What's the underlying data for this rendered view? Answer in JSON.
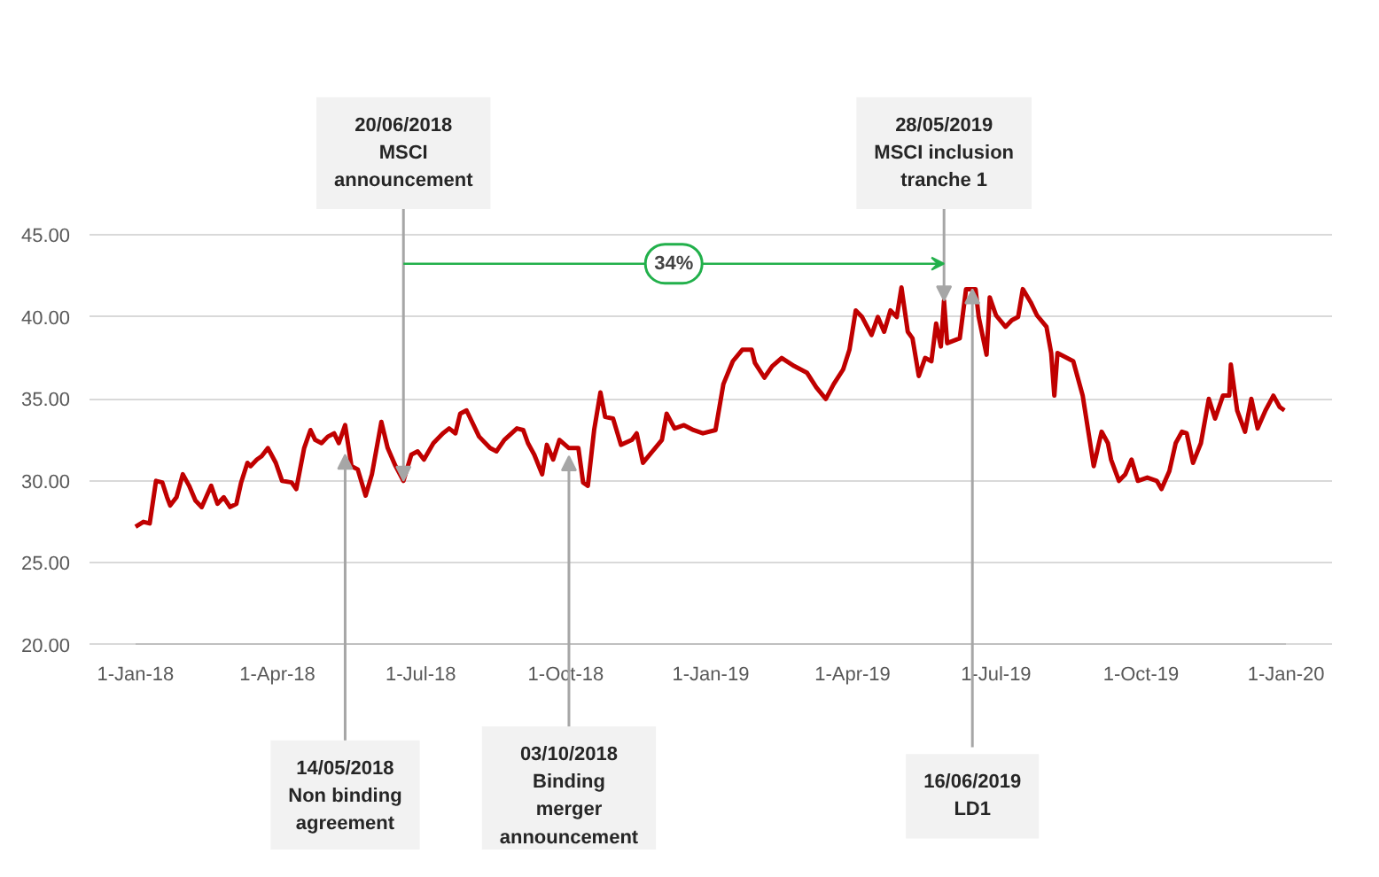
{
  "chart_data": {
    "type": "line",
    "xlim": [
      "2018-01-01",
      "2020-01-01"
    ],
    "ylim": [
      20,
      45
    ],
    "xticks": [
      {
        "value": "2018-01-01",
        "label": "1-Jan-18"
      },
      {
        "value": "2018-04-01",
        "label": "1-Apr-18"
      },
      {
        "value": "2018-07-01",
        "label": "1-Jul-18"
      },
      {
        "value": "2018-10-01",
        "label": "1-Oct-18"
      },
      {
        "value": "2019-01-01",
        "label": "1-Jan-19"
      },
      {
        "value": "2019-04-01",
        "label": "1-Apr-19"
      },
      {
        "value": "2019-07-01",
        "label": "1-Jul-19"
      },
      {
        "value": "2019-10-01",
        "label": "1-Oct-19"
      },
      {
        "value": "2020-01-01",
        "label": "1-Jan-20"
      }
    ],
    "yticks": [
      {
        "value": 20,
        "label": "20.00"
      },
      {
        "value": 25,
        "label": "25.00"
      },
      {
        "value": 30,
        "label": "30.00"
      },
      {
        "value": 35,
        "label": "35.00"
      },
      {
        "value": 40,
        "label": "40.00"
      },
      {
        "value": 45,
        "label": "45.00"
      }
    ],
    "grid": "y",
    "marker": "none",
    "line_style": "solid",
    "series": [
      {
        "color": "#c00000",
        "x": [
          "2018-01-01",
          "2018-01-06",
          "2018-01-10",
          "2018-01-14",
          "2018-01-18",
          "2018-01-21",
          "2018-01-23",
          "2018-01-27",
          "2018-01-31",
          "2018-02-04",
          "2018-02-08",
          "2018-02-12",
          "2018-02-18",
          "2018-02-22",
          "2018-02-26",
          "2018-03-02",
          "2018-03-06",
          "2018-03-09",
          "2018-03-13",
          "2018-03-15",
          "2018-03-19",
          "2018-03-22",
          "2018-03-26",
          "2018-03-31",
          "2018-04-04",
          "2018-04-10",
          "2018-04-13",
          "2018-04-18",
          "2018-04-22",
          "2018-04-25",
          "2018-04-29",
          "2018-05-03",
          "2018-05-07",
          "2018-05-10",
          "2018-05-14",
          "2018-05-18",
          "2018-05-22",
          "2018-05-27",
          "2018-05-31",
          "2018-06-06",
          "2018-06-10",
          "2018-06-15",
          "2018-06-20",
          "2018-06-25",
          "2018-06-29",
          "2018-07-03",
          "2018-07-09",
          "2018-07-15",
          "2018-07-19",
          "2018-07-23",
          "2018-07-26",
          "2018-07-30",
          "2018-08-07",
          "2018-08-14",
          "2018-08-18",
          "2018-08-23",
          "2018-08-31",
          "2018-09-04",
          "2018-09-07",
          "2018-09-11",
          "2018-09-16",
          "2018-09-19",
          "2018-09-23",
          "2018-09-27",
          "2018-10-03",
          "2018-10-09",
          "2018-10-12",
          "2018-10-15",
          "2018-10-19",
          "2018-10-23",
          "2018-10-26",
          "2018-10-31",
          "2018-11-05",
          "2018-11-12",
          "2018-11-15",
          "2018-11-19",
          "2018-11-25",
          "2018-12-01",
          "2018-12-04",
          "2018-12-09",
          "2018-12-15",
          "2018-12-21",
          "2018-12-27",
          "2019-01-04",
          "2019-01-09",
          "2019-01-15",
          "2019-01-21",
          "2019-01-27",
          "2019-01-29",
          "2019-02-04",
          "2019-02-09",
          "2019-02-15",
          "2019-02-23",
          "2019-03-03",
          "2019-03-09",
          "2019-03-15",
          "2019-03-20",
          "2019-03-26",
          "2019-03-30",
          "2019-04-03",
          "2019-04-07",
          "2019-04-13",
          "2019-04-17",
          "2019-04-21",
          "2019-04-25",
          "2019-04-29",
          "2019-05-02",
          "2019-05-06",
          "2019-05-09",
          "2019-05-13",
          "2019-05-17",
          "2019-05-21",
          "2019-05-24",
          "2019-05-27",
          "2019-05-29",
          "2019-05-31",
          "2019-06-08",
          "2019-06-12",
          "2019-06-18",
          "2019-06-20",
          "2019-06-25",
          "2019-06-27",
          "2019-07-01",
          "2019-07-07",
          "2019-07-11",
          "2019-07-15",
          "2019-07-18",
          "2019-07-23",
          "2019-07-27",
          "2019-08-02",
          "2019-08-05",
          "2019-08-07",
          "2019-08-09",
          "2019-08-19",
          "2019-08-25",
          "2019-09-01",
          "2019-09-06",
          "2019-09-10",
          "2019-09-12",
          "2019-09-17",
          "2019-09-21",
          "2019-09-25",
          "2019-09-29",
          "2019-10-05",
          "2019-10-11",
          "2019-10-14",
          "2019-10-19",
          "2019-10-23",
          "2019-10-27",
          "2019-10-30",
          "2019-11-03",
          "2019-11-08",
          "2019-11-13",
          "2019-11-17",
          "2019-11-22",
          "2019-11-26",
          "2019-11-27",
          "2019-12-01",
          "2019-12-06",
          "2019-12-10",
          "2019-12-14",
          "2019-12-19",
          "2019-12-24",
          "2019-12-28",
          "2019-12-31"
        ],
        "values": [
          27.2,
          27.5,
          27.4,
          30.0,
          29.9,
          29.0,
          28.5,
          29.0,
          30.4,
          29.7,
          28.8,
          28.4,
          29.7,
          28.6,
          29.0,
          28.4,
          28.6,
          29.9,
          31.1,
          30.9,
          31.3,
          31.5,
          32.0,
          31.1,
          30.0,
          29.9,
          29.5,
          32.0,
          33.1,
          32.5,
          32.3,
          32.7,
          32.9,
          32.3,
          33.4,
          30.9,
          30.7,
          29.1,
          30.4,
          33.6,
          32.0,
          30.9,
          30.0,
          31.6,
          31.8,
          31.3,
          32.3,
          32.9,
          33.2,
          32.9,
          34.1,
          34.3,
          32.7,
          32.0,
          31.8,
          32.5,
          33.2,
          33.1,
          32.3,
          31.6,
          30.4,
          32.2,
          31.3,
          32.5,
          32.0,
          32.0,
          29.9,
          29.7,
          33.1,
          35.4,
          33.9,
          33.8,
          32.2,
          32.5,
          32.9,
          31.1,
          31.8,
          32.5,
          34.1,
          33.2,
          33.4,
          33.1,
          32.9,
          33.1,
          35.9,
          37.3,
          38.0,
          38.0,
          37.2,
          36.3,
          37.0,
          37.5,
          37.0,
          36.6,
          35.7,
          35.0,
          35.9,
          36.8,
          38.0,
          40.4,
          40.0,
          38.9,
          40.0,
          39.1,
          40.4,
          40.0,
          41.8,
          39.1,
          38.7,
          36.4,
          37.5,
          37.3,
          39.6,
          38.2,
          41.0,
          38.4,
          38.7,
          41.7,
          41.7,
          40.0,
          37.7,
          41.2,
          40.1,
          39.4,
          39.8,
          40.0,
          41.7,
          40.9,
          40.1,
          39.4,
          37.8,
          35.2,
          37.8,
          37.3,
          35.2,
          30.9,
          33.0,
          32.3,
          31.3,
          30.0,
          30.4,
          31.3,
          30.0,
          30.2,
          30.0,
          29.5,
          30.6,
          32.3,
          33.0,
          32.9,
          31.1,
          32.3,
          35.0,
          33.8,
          35.2,
          35.2,
          37.1,
          34.3,
          33.0,
          35.0,
          33.2,
          34.3,
          35.2,
          34.5,
          34.3
        ]
      }
    ],
    "annotations": [
      {
        "text": "14/05/2018\nNon binding\nagreement",
        "x": "2018-05-14",
        "y": 31.6
      },
      {
        "text": "20/06/2018\nMSCI\nannouncement",
        "x": "2018-06-20",
        "y": 30.0
      },
      {
        "text": "03/10/2018\nBinding\nmerger\nannouncement",
        "x": "2018-10-03",
        "y": 31.5
      },
      {
        "text": "28/05/2019\nMSCI inclusion\ntranche 1",
        "x": "2019-05-29",
        "y": 41.0
      },
      {
        "text": "16/06/2019\nLD1",
        "x": "2019-06-16",
        "y": 41.7
      },
      "34%"
    ]
  }
}
